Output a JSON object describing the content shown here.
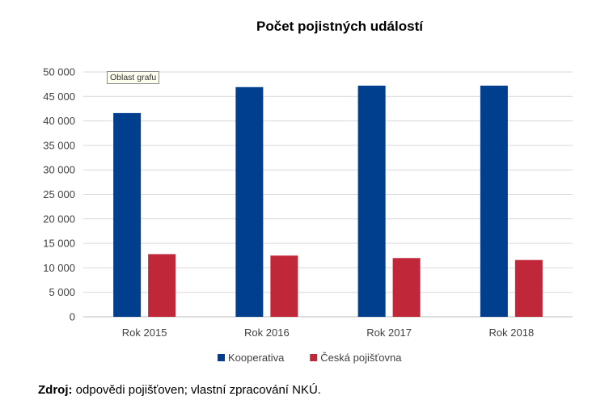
{
  "chart_data": {
    "type": "bar",
    "title": "Počet pojistných událostí",
    "categories": [
      "Rok 2015",
      "Rok 2016",
      "Rok 2017",
      "Rok 2018"
    ],
    "series": [
      {
        "name": "Kooperativa",
        "color": "#003f8e",
        "values": [
          41600,
          46900,
          47200,
          47200
        ]
      },
      {
        "name": "Česká pojišťovna",
        "color": "#c0283a",
        "values": [
          12800,
          12500,
          12000,
          11600
        ]
      }
    ],
    "yticks": [
      "0",
      "5 000",
      "10 000",
      "15 000",
      "20 000",
      "25 000",
      "30 000",
      "35 000",
      "40 000",
      "45 000",
      "50 000"
    ],
    "ylim": [
      0,
      50000
    ],
    "grid": true,
    "legend": "bottom"
  },
  "tooltip": {
    "text": "Oblast grafu"
  },
  "source": {
    "label": "Zdroj:",
    "text": " odpovědi pojišťoven; vlastní zpracování NKÚ."
  }
}
